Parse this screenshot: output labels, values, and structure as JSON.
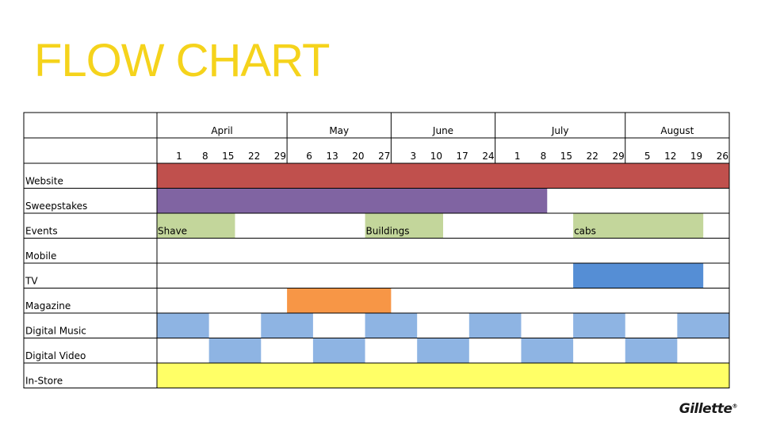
{
  "title": "FLOW CHART",
  "logo_text": "Gillette",
  "chart_data": {
    "type": "table",
    "months": [
      "April",
      "May",
      "June",
      "July",
      "August"
    ],
    "weeks": [
      "1",
      "8",
      "15",
      "22",
      "29",
      "6",
      "13",
      "20",
      "27",
      "3",
      "10",
      "17",
      "24",
      "1",
      "8",
      "15",
      "22",
      "29",
      "5",
      "12",
      "19",
      "26"
    ],
    "rows": [
      {
        "label": "Website",
        "bars": [
          {
            "start": 0,
            "end": 22,
            "color": "#c0504d",
            "text": ""
          }
        ]
      },
      {
        "label": "Sweepstakes",
        "bars": [
          {
            "start": 0,
            "end": 15,
            "color": "#8064a2",
            "text": ""
          }
        ]
      },
      {
        "label": "Events",
        "bars": [
          {
            "start": 0,
            "end": 3,
            "color": "#c3d69b",
            "text": "Shave"
          },
          {
            "start": 8,
            "end": 11,
            "color": "#c3d69b",
            "text": "Buildings"
          },
          {
            "start": 16,
            "end": 21,
            "color": "#c3d69b",
            "text": "cabs"
          }
        ]
      },
      {
        "label": "Mobile",
        "bars": []
      },
      {
        "label": "TV",
        "bars": [
          {
            "start": 16,
            "end": 21,
            "color": "#558ed5",
            "text": ""
          }
        ]
      },
      {
        "label": "Magazine",
        "bars": [
          {
            "start": 5,
            "end": 9,
            "color": "#f79646",
            "text": ""
          }
        ]
      },
      {
        "label": "Digital Music",
        "bars": [
          {
            "start": 0,
            "end": 2,
            "color": "#8eb4e3",
            "text": ""
          },
          {
            "start": 4,
            "end": 6,
            "color": "#8eb4e3",
            "text": ""
          },
          {
            "start": 8,
            "end": 10,
            "color": "#8eb4e3",
            "text": ""
          },
          {
            "start": 12,
            "end": 14,
            "color": "#8eb4e3",
            "text": ""
          },
          {
            "start": 16,
            "end": 18,
            "color": "#8eb4e3",
            "text": ""
          },
          {
            "start": 20,
            "end": 22,
            "color": "#8eb4e3",
            "text": ""
          }
        ]
      },
      {
        "label": "Digital Video",
        "bars": [
          {
            "start": 2,
            "end": 4,
            "color": "#8eb4e3",
            "text": ""
          },
          {
            "start": 6,
            "end": 8,
            "color": "#8eb4e3",
            "text": ""
          },
          {
            "start": 10,
            "end": 12,
            "color": "#8eb4e3",
            "text": ""
          },
          {
            "start": 14,
            "end": 16,
            "color": "#8eb4e3",
            "text": ""
          },
          {
            "start": 18,
            "end": 20,
            "color": "#8eb4e3",
            "text": ""
          }
        ]
      },
      {
        "label": "In-Store",
        "bars": [
          {
            "start": 0,
            "end": 22,
            "color": "#ffff66",
            "text": ""
          }
        ]
      }
    ]
  }
}
